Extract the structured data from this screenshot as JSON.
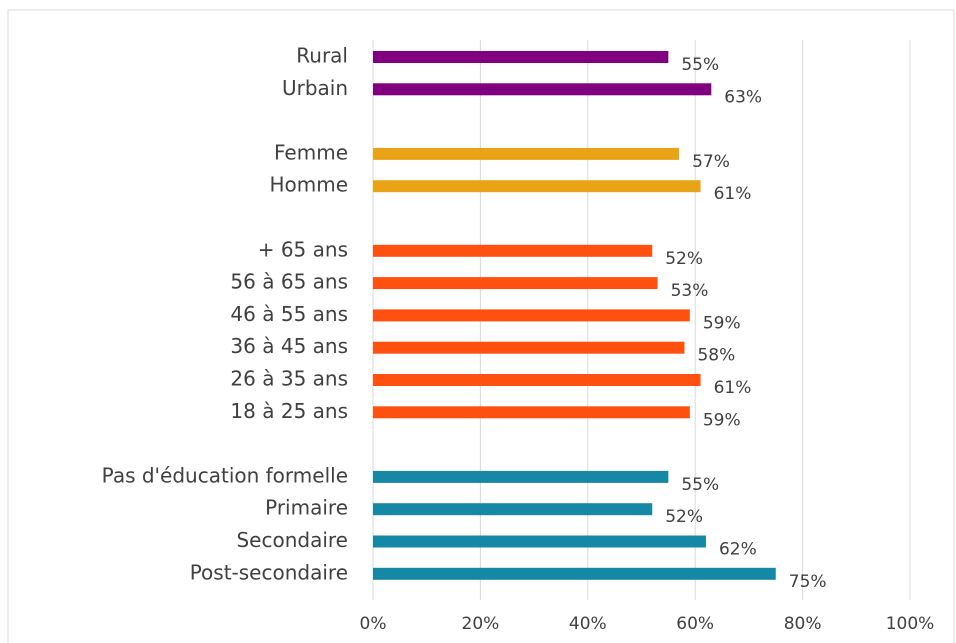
{
  "chart_data": {
    "type": "barh",
    "categories": [
      "Rural",
      "Urbain",
      null,
      "Femme",
      "Homme",
      null,
      "+ 65 ans",
      "56 à 65 ans",
      "46 à 55 ans",
      "36 à 45 ans",
      "26 à 35 ans",
      "18 à 25 ans",
      null,
      "Pas d'éducation formelle",
      "Primaire",
      "Secondaire",
      "Post-secondaire"
    ],
    "values": [
      55,
      63,
      null,
      57,
      61,
      null,
      52,
      53,
      59,
      58,
      61,
      59,
      null,
      55,
      52,
      62,
      75
    ],
    "value_labels": [
      "55%",
      "63%",
      null,
      "57%",
      "61%",
      null,
      "52%",
      "53%",
      "59%",
      "58%",
      "61%",
      "59%",
      null,
      "55%",
      "52%",
      "62%",
      "75%"
    ],
    "colors": [
      "#800080",
      "#800080",
      null,
      "#e8a317",
      "#e8a317",
      null,
      "#ff5010",
      "#ff5010",
      "#ff5010",
      "#ff5010",
      "#ff5010",
      "#ff5010",
      null,
      "#1787a6",
      "#1787a6",
      "#1787a6",
      "#1787a6"
    ],
    "xlim": [
      0,
      100
    ],
    "xticks": [
      {
        "value": 0,
        "label": "0%"
      },
      {
        "value": 20,
        "label": "20%"
      },
      {
        "value": 40,
        "label": "40%"
      },
      {
        "value": 60,
        "label": "60%"
      },
      {
        "value": 80,
        "label": "80%"
      },
      {
        "value": 100,
        "label": "100%"
      }
    ],
    "grid": true
  }
}
